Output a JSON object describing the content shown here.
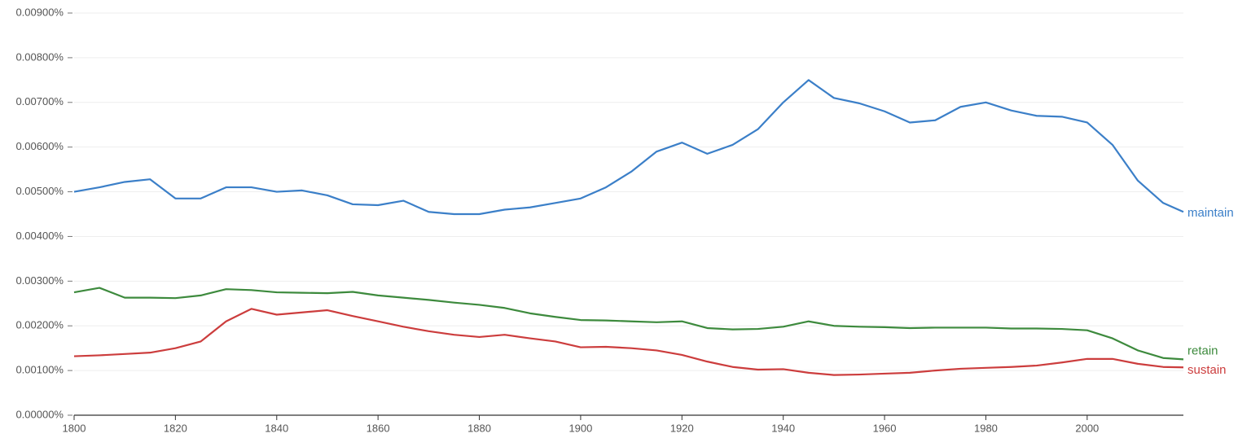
{
  "chart_data": {
    "type": "line",
    "x": [
      1800,
      1805,
      1810,
      1815,
      1820,
      1825,
      1830,
      1835,
      1840,
      1845,
      1850,
      1855,
      1860,
      1865,
      1870,
      1875,
      1880,
      1885,
      1890,
      1895,
      1900,
      1905,
      1910,
      1915,
      1920,
      1925,
      1930,
      1935,
      1940,
      1945,
      1950,
      1955,
      1960,
      1965,
      1970,
      1975,
      1980,
      1985,
      1990,
      1995,
      2000,
      2005,
      2010,
      2015,
      2019
    ],
    "series": [
      {
        "name": "maintain",
        "color": "#3b7fc8",
        "values": [
          0.005,
          0.0051,
          0.00522,
          0.00528,
          0.00485,
          0.00485,
          0.0051,
          0.0051,
          0.005,
          0.00503,
          0.00492,
          0.00472,
          0.0047,
          0.0048,
          0.00455,
          0.0045,
          0.0045,
          0.0046,
          0.00465,
          0.00475,
          0.00485,
          0.0051,
          0.00545,
          0.0059,
          0.0061,
          0.00585,
          0.00605,
          0.0064,
          0.007,
          0.0075,
          0.0071,
          0.00698,
          0.0068,
          0.00655,
          0.0066,
          0.0069,
          0.007,
          0.00682,
          0.0067,
          0.00668,
          0.00655,
          0.00605,
          0.00525,
          0.00475,
          0.00455
        ]
      },
      {
        "name": "retain",
        "color": "#3d8a3d",
        "values": [
          0.00275,
          0.00285,
          0.00263,
          0.00263,
          0.00262,
          0.00268,
          0.00282,
          0.0028,
          0.00275,
          0.00274,
          0.00273,
          0.00276,
          0.00268,
          0.00263,
          0.00258,
          0.00252,
          0.00247,
          0.0024,
          0.00228,
          0.0022,
          0.00213,
          0.00212,
          0.0021,
          0.00208,
          0.0021,
          0.00195,
          0.00192,
          0.00193,
          0.00198,
          0.0021,
          0.002,
          0.00198,
          0.00197,
          0.00195,
          0.00196,
          0.00196,
          0.00196,
          0.00194,
          0.00194,
          0.00193,
          0.0019,
          0.00172,
          0.00145,
          0.00128,
          0.00125
        ]
      },
      {
        "name": "sustain",
        "color": "#cc3d3d",
        "values": [
          0.00132,
          0.00134,
          0.00137,
          0.0014,
          0.0015,
          0.00165,
          0.0021,
          0.00238,
          0.00225,
          0.0023,
          0.00235,
          0.00222,
          0.0021,
          0.00198,
          0.00188,
          0.0018,
          0.00175,
          0.0018,
          0.00172,
          0.00165,
          0.00152,
          0.00153,
          0.0015,
          0.00145,
          0.00135,
          0.0012,
          0.00108,
          0.00102,
          0.00103,
          0.00095,
          0.0009,
          0.00091,
          0.00093,
          0.00095,
          0.001,
          0.00104,
          0.00106,
          0.00108,
          0.00111,
          0.00118,
          0.00126,
          0.00126,
          0.00115,
          0.00108,
          0.00107
        ]
      }
    ],
    "xlim": [
      1800,
      2019
    ],
    "xticks": [
      1800,
      1820,
      1840,
      1860,
      1880,
      1900,
      1920,
      1940,
      1960,
      1980,
      2000
    ],
    "ylim": [
      0,
      0.009
    ],
    "yticks": [
      {
        "value": 0,
        "label": "0.00000%"
      },
      {
        "value": 0.001,
        "label": "0.00100%"
      },
      {
        "value": 0.002,
        "label": "0.00200%"
      },
      {
        "value": 0.003,
        "label": "0.00300%"
      },
      {
        "value": 0.004,
        "label": "0.00400%"
      },
      {
        "value": 0.005,
        "label": "0.00500%"
      },
      {
        "value": 0.006,
        "label": "0.00600%"
      },
      {
        "value": 0.007,
        "label": "0.00700%"
      },
      {
        "value": 0.008,
        "label": "0.00800%"
      },
      {
        "value": 0.009,
        "label": "0.00900%"
      }
    ],
    "grid": true
  }
}
